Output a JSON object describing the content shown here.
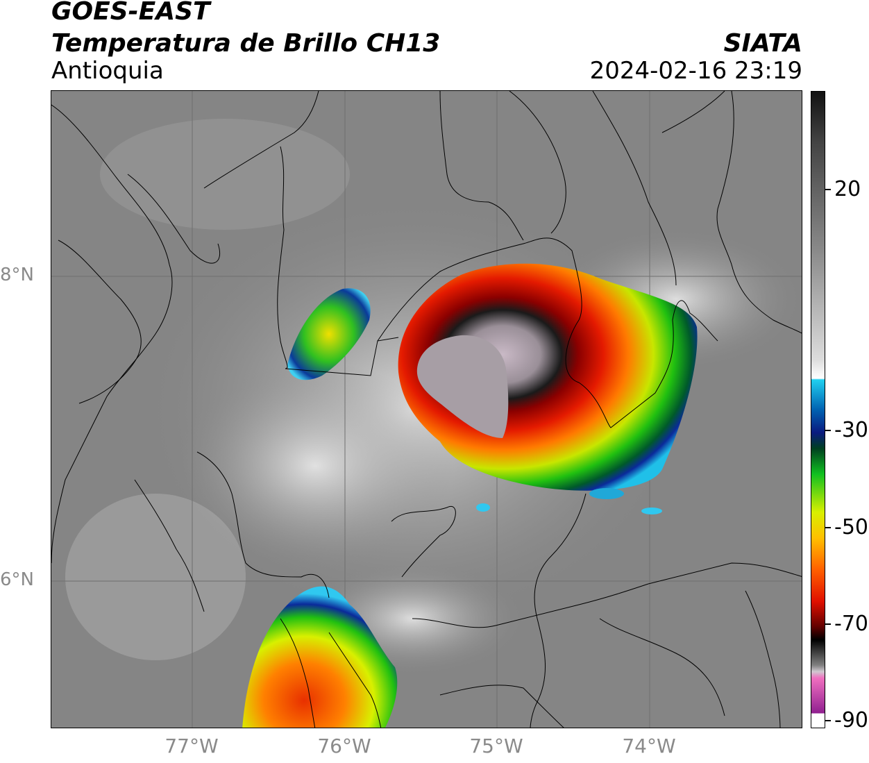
{
  "header": {
    "satellite": "GOES-EAST",
    "product": "Temperatura de Brillo CH13",
    "region": "Antioquia",
    "agency": "SIATA",
    "datetime": "2024-02-16 23:19"
  },
  "map": {
    "lat_labels": [
      "8°N",
      "6°N"
    ],
    "lon_labels": [
      "77°W",
      "76°W",
      "75°W",
      "74°W"
    ]
  },
  "colorbar": {
    "tick_labels": [
      "20",
      "-30",
      "-50",
      "-70",
      "-90"
    ]
  }
}
